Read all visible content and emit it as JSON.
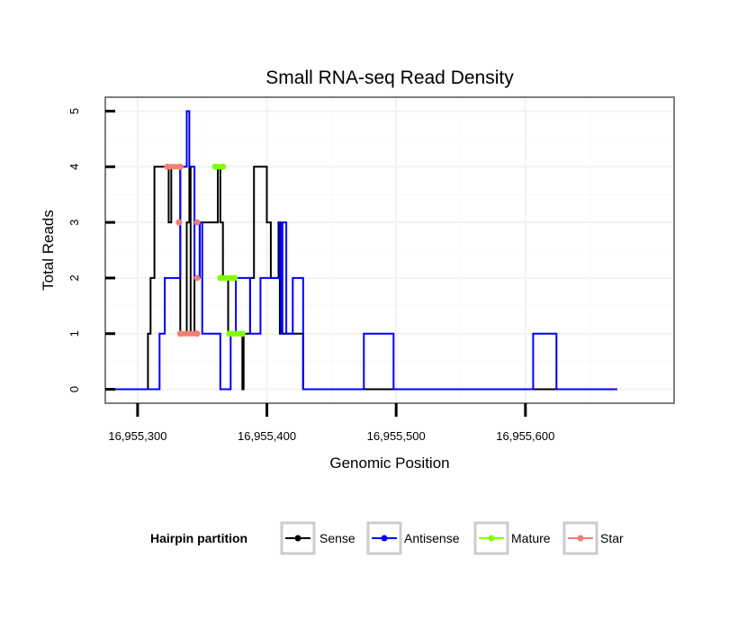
{
  "chart_data": {
    "type": "line",
    "title": "Small RNA-seq Read Density",
    "xlabel": "Genomic Position",
    "ylabel": "Total Reads",
    "xlim": [
      16955275,
      16955715
    ],
    "ylim": [
      -0.25,
      5.25
    ],
    "x_ticks": [
      16955300,
      16955400,
      16955500,
      16955600
    ],
    "x_tick_labels": [
      "16,955,300",
      "16,955,400",
      "16,955,500",
      "16,955,600"
    ],
    "y_ticks": [
      0,
      1,
      2,
      3,
      4,
      5
    ],
    "y_tick_labels": [
      "0",
      "1",
      "2",
      "3",
      "4",
      "5"
    ],
    "grid": true,
    "legend": {
      "title": "Hairpin partition",
      "position": "bottom",
      "items": [
        {
          "label": "Sense",
          "color": "#000000"
        },
        {
          "label": "Antisense",
          "color": "#0000ff"
        },
        {
          "label": "Mature",
          "color": "#7fff00"
        },
        {
          "label": "Star",
          "color": "#f08070"
        }
      ]
    },
    "series": [
      {
        "name": "Sense",
        "color": "#000000",
        "points": [
          [
            16955279,
            0
          ],
          [
            16955308,
            0
          ],
          [
            16955308,
            1
          ],
          [
            16955310,
            1
          ],
          [
            16955310,
            2
          ],
          [
            16955313,
            2
          ],
          [
            16955313,
            4
          ],
          [
            16955324,
            4
          ],
          [
            16955324,
            3
          ],
          [
            16955326,
            3
          ],
          [
            16955326,
            4
          ],
          [
            16955333,
            4
          ],
          [
            16955333,
            1
          ],
          [
            16955338,
            1
          ],
          [
            16955338,
            3
          ],
          [
            16955340,
            3
          ],
          [
            16955340,
            4
          ],
          [
            16955341,
            4
          ],
          [
            16955341,
            1
          ],
          [
            16955344,
            1
          ],
          [
            16955344,
            2
          ],
          [
            16955348,
            2
          ],
          [
            16955348,
            3
          ],
          [
            16955353,
            3
          ],
          [
            16955353,
            3
          ],
          [
            16955362,
            3
          ],
          [
            16955362,
            4
          ],
          [
            16955364,
            4
          ],
          [
            16955364,
            3
          ],
          [
            16955366,
            3
          ],
          [
            16955366,
            2
          ],
          [
            16955370,
            2
          ],
          [
            16955370,
            1
          ],
          [
            16955381,
            1
          ],
          [
            16955381,
            0
          ],
          [
            16955382,
            0
          ],
          [
            16955382,
            1
          ],
          [
            16955387,
            1
          ],
          [
            16955387,
            2
          ],
          [
            16955390,
            2
          ],
          [
            16955390,
            4
          ],
          [
            16955400,
            4
          ],
          [
            16955400,
            3
          ],
          [
            16955403,
            3
          ],
          [
            16955403,
            2
          ],
          [
            16955409,
            2
          ],
          [
            16955409,
            3
          ],
          [
            16955410,
            3
          ],
          [
            16955410,
            1
          ],
          [
            16955428,
            1
          ],
          [
            16955428,
            0
          ],
          [
            16955671,
            0
          ]
        ]
      },
      {
        "name": "Antisense",
        "color": "#0000ff",
        "points": [
          [
            16955279,
            0
          ],
          [
            16955317,
            0
          ],
          [
            16955317,
            1
          ],
          [
            16955321,
            1
          ],
          [
            16955321,
            2
          ],
          [
            16955333,
            2
          ],
          [
            16955333,
            4
          ],
          [
            16955338,
            4
          ],
          [
            16955338,
            5
          ],
          [
            16955340,
            5
          ],
          [
            16955340,
            4
          ],
          [
            16955344,
            4
          ],
          [
            16955344,
            2
          ],
          [
            16955348,
            2
          ],
          [
            16955348,
            3
          ],
          [
            16955350,
            3
          ],
          [
            16955350,
            1
          ],
          [
            16955364,
            1
          ],
          [
            16955364,
            0
          ],
          [
            16955372,
            0
          ],
          [
            16955372,
            1
          ],
          [
            16955376,
            1
          ],
          [
            16955376,
            2
          ],
          [
            16955387,
            2
          ],
          [
            16955387,
            1
          ],
          [
            16955395,
            1
          ],
          [
            16955395,
            2
          ],
          [
            16955410,
            2
          ],
          [
            16955410,
            3
          ],
          [
            16955411,
            3
          ],
          [
            16955411,
            1
          ],
          [
            16955412,
            1
          ],
          [
            16955412,
            3
          ],
          [
            16955415,
            3
          ],
          [
            16955415,
            1
          ],
          [
            16955420,
            1
          ],
          [
            16955420,
            2
          ],
          [
            16955428,
            2
          ],
          [
            16955428,
            0
          ],
          [
            16955475,
            0
          ],
          [
            16955475,
            1
          ],
          [
            16955498,
            1
          ],
          [
            16955498,
            0
          ],
          [
            16955606,
            0
          ],
          [
            16955606,
            1
          ],
          [
            16955624,
            1
          ],
          [
            16955624,
            0
          ],
          [
            16955671,
            0
          ]
        ]
      },
      {
        "name": "Mature",
        "color": "#7fff00",
        "points": [
          [
            16955360,
            4
          ],
          [
            16955366,
            4
          ],
          [
            16955364,
            2
          ],
          [
            16955375,
            2
          ],
          [
            16955371,
            1
          ],
          [
            16955381,
            1
          ]
        ]
      },
      {
        "name": "Star",
        "color": "#f08070",
        "points": [
          [
            16955323,
            4
          ],
          [
            16955333,
            4
          ],
          [
            16955332,
            3
          ],
          [
            16955346,
            3
          ],
          [
            16955346,
            2
          ],
          [
            16955333,
            1
          ],
          [
            16955346,
            1
          ]
        ]
      }
    ]
  }
}
